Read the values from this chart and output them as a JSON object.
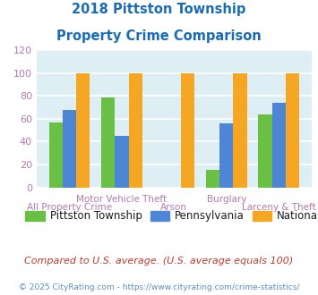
{
  "title_line1": "2018 Pittston Township",
  "title_line2": "Property Crime Comparison",
  "title_color": "#1a6bb5",
  "categories": [
    "All Property Crime",
    "Motor Vehicle Theft",
    "Arson",
    "Burglary",
    "Larceny & Theft"
  ],
  "pittston": [
    57,
    79,
    null,
    15,
    64
  ],
  "pennsylvania": [
    68,
    45,
    null,
    56,
    74
  ],
  "national": [
    100,
    100,
    100,
    100,
    100
  ],
  "bar_colors": {
    "pittston": "#6abf45",
    "pennsylvania": "#4d86d4",
    "national": "#f5a623"
  },
  "ylim": [
    0,
    120
  ],
  "yticks": [
    0,
    20,
    40,
    60,
    80,
    100,
    120
  ],
  "background_color": "#ddeef5",
  "grid_color": "#ffffff",
  "legend_labels": [
    "Pittston Township",
    "Pennsylvania",
    "National"
  ],
  "footnote1": "Compared to U.S. average. (U.S. average equals 100)",
  "footnote2": "© 2025 CityRating.com - https://www.cityrating.com/crime-statistics/",
  "footnote1_color": "#c0392b",
  "footnote2_color": "#5a8fc2",
  "xlabel_color": "#b07ab0",
  "tick_label_color": "#b07ab0",
  "title_fontsize": 10.5,
  "tick_fontsize": 8,
  "label_fontsize": 7.5,
  "legend_fontsize": 8.5,
  "footnote1_fontsize": 8,
  "footnote2_fontsize": 6.5
}
